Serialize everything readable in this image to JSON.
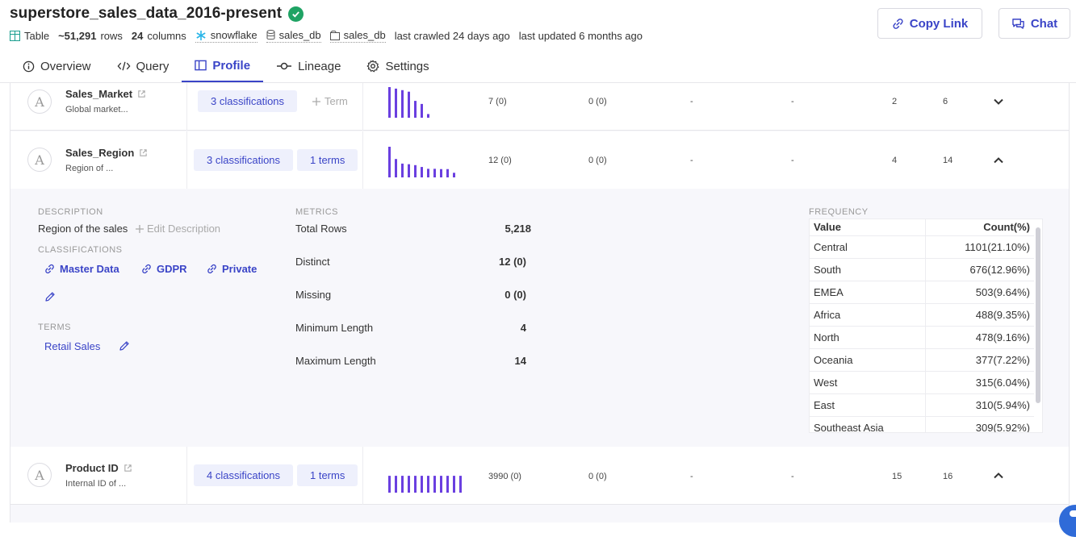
{
  "header": {
    "title": "superstore_sales_data_2016-present",
    "type_label": "Table",
    "rows": "~51,291",
    "rows_suffix": "rows",
    "columns": "24",
    "columns_suffix": "columns",
    "source": "snowflake",
    "database": "sales_db",
    "schema": "sales_db",
    "crawled": "last crawled 24 days ago",
    "updated": "last updated 6 months ago",
    "copy_link": "Copy Link",
    "chat": "Chat"
  },
  "tabs": [
    {
      "label": "Overview",
      "icon": "info-icon"
    },
    {
      "label": "Query",
      "icon": "code-icon"
    },
    {
      "label": "Profile",
      "icon": "columns-icon",
      "active": true
    },
    {
      "label": "Lineage",
      "icon": "lineage-icon"
    },
    {
      "label": "Settings",
      "icon": "gear-icon"
    }
  ],
  "columns": [
    {
      "avatar": "A",
      "name": "Sales_Market",
      "desc": "Global market...",
      "classifications": "3 classifications",
      "terms": "Term",
      "distinct": "7 (0)",
      "missing": "0 (0)",
      "min_val": "-",
      "max_val": "-",
      "min_len": "2",
      "max_len": "6",
      "spark": [
        1,
        0.95,
        0.9,
        0.85,
        0.55,
        0.45,
        0.12
      ]
    },
    {
      "avatar": "A",
      "name": "Sales_Region",
      "desc": "Region of ...",
      "classifications": "3 classifications",
      "terms": "1 terms",
      "distinct": "12 (0)",
      "missing": "0 (0)",
      "min_val": "-",
      "max_val": "-",
      "min_len": "4",
      "max_len": "14",
      "spark": [
        1,
        0.6,
        0.45,
        0.43,
        0.4,
        0.34,
        0.28,
        0.28,
        0.27,
        0.27,
        0.15
      ]
    },
    {
      "avatar": "A",
      "name": "Product ID",
      "desc": "Internal ID of ...",
      "classifications": "4 classifications",
      "terms": "1 terms",
      "distinct": "3990 (0)",
      "missing": "0 (0)",
      "min_val": "-",
      "max_val": "-",
      "min_len": "15",
      "max_len": "16",
      "spark": [
        0.55,
        0.55,
        0.55,
        0.55,
        0.55,
        0.55,
        0.55,
        0.55,
        0.55,
        0.55,
        0.55,
        0.55
      ]
    }
  ],
  "detail": {
    "description_label": "DESCRIPTION",
    "description": "Region of the sales",
    "edit_description": "Edit Description",
    "classifications_label": "CLASSIFICATIONS",
    "classifications": [
      "Master Data",
      "GDPR",
      "Private"
    ],
    "terms_label": "TERMS",
    "terms": [
      "Retail Sales"
    ],
    "metrics_label": "METRICS",
    "metrics": [
      {
        "label": "Total Rows",
        "value": "5,218"
      },
      {
        "label": "Distinct",
        "value": "12 (0)"
      },
      {
        "label": "Missing",
        "value": "0 (0)"
      },
      {
        "label": "Minimum Length",
        "value": "4"
      },
      {
        "label": "Maximum Length",
        "value": "14"
      }
    ],
    "frequency_label": "FREQUENCY",
    "frequency_headers": [
      "Value",
      "Count(%)"
    ],
    "frequency": [
      {
        "value": "Central",
        "count": "1101(21.10%)"
      },
      {
        "value": "South",
        "count": "676(12.96%)"
      },
      {
        "value": "EMEA",
        "count": "503(9.64%)"
      },
      {
        "value": "Africa",
        "count": "488(9.35%)"
      },
      {
        "value": "North",
        "count": "478(9.16%)"
      },
      {
        "value": "Oceania",
        "count": "377(7.22%)"
      },
      {
        "value": "West",
        "count": "315(6.04%)"
      },
      {
        "value": "East",
        "count": "310(5.94%)"
      },
      {
        "value": "Southeast Asia",
        "count": "309(5.92%)"
      }
    ]
  },
  "colors": {
    "accent": "#3a44c7",
    "bar": "#6a3fe0",
    "verified": "#1fa364"
  }
}
